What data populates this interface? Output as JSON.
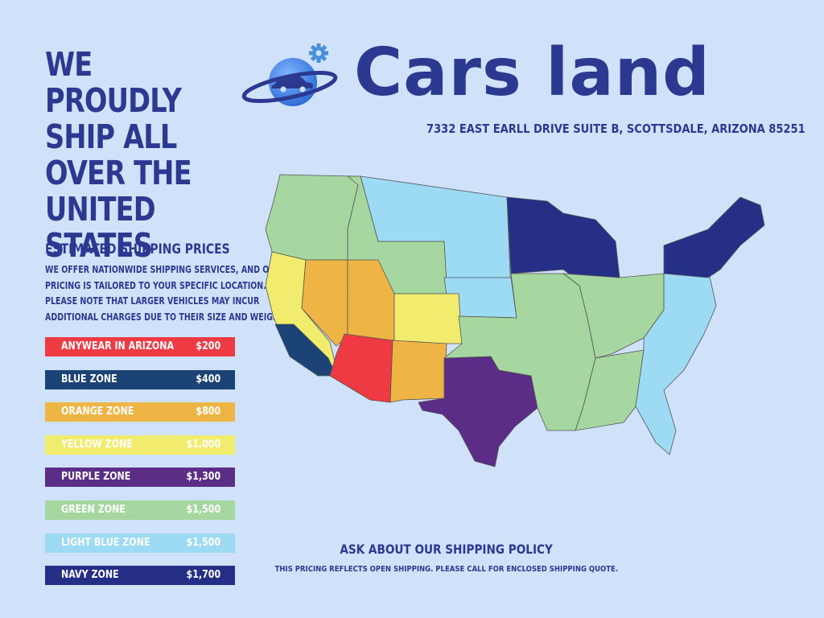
{
  "headline": {
    "lines": [
      "WE PROUDLY",
      "SHIP ALL",
      "OVER THE",
      "UNITED",
      "STATES"
    ]
  },
  "brand": {
    "name": "Cars land",
    "address": "7332 EAST EARLL DRIVE SUITE B, SCOTTSDALE, ARIZONA 85251",
    "logo_icon": "car-planet-logo-icon"
  },
  "estimated": {
    "title": "ESTIMATED SHIPPING PRICES",
    "lines": [
      "WE OFFER NATIONWIDE SHIPPING SERVICES, AND OUR",
      "PRICING IS TAILORED TO YOUR SPECIFIC LOCATION.",
      "PLEASE NOTE THAT LARGER VEHICLES MAY INCUR",
      "ADDITIONAL CHARGES DUE TO THEIR SIZE AND WEIGHT."
    ]
  },
  "zones": [
    {
      "name": "ANYWEAR IN ARIZONA",
      "price": "$200",
      "color": "#ee3a43",
      "text_color": "#ffffff"
    },
    {
      "name": "BLUE ZONE",
      "price": "$400",
      "color": "#1b4375",
      "text_color": "#ffffff"
    },
    {
      "name": "ORANGE ZONE",
      "price": "$800",
      "color": "#efb544",
      "text_color": "#ffffff"
    },
    {
      "name": "YELLOW  ZONE",
      "price": "$1,000",
      "color": "#f1ec6d",
      "text_color": "#ffffff"
    },
    {
      "name": "PURPLE ZONE",
      "price": "$1,300",
      "color": "#5c2d86",
      "text_color": "#ffffff"
    },
    {
      "name": "GREEN ZONE",
      "price": "$1,500",
      "color": "#a6d7a0",
      "text_color": "#ffffff"
    },
    {
      "name": "LIGHT BLUE  ZONE",
      "price": "$1,500",
      "color": "#9ddbf4",
      "text_color": "#ffffff"
    },
    {
      "name": "NAVY ZONE",
      "price": "$1,700",
      "color": "#262f86",
      "text_color": "#ffffff"
    }
  ],
  "map": {
    "icon": "usa-shipping-zone-map",
    "colors": {
      "green": "#a6d7a0",
      "lightblue": "#9ddbf4",
      "navy": "#262f86",
      "yellow": "#f1ec6d",
      "orange": "#efb544",
      "red": "#ee3a43",
      "blue": "#1b4375",
      "purple": "#5c2d86"
    }
  },
  "policy": {
    "title": "ASK ABOUT OUR SHIPPING POLICY",
    "note": "THIS PRICING REFLECTS OPEN SHIPPING. PLEASE CALL FOR ENCLOSED SHIPPING QUOTE."
  },
  "colors": {
    "background": "#cfe2fa",
    "text": "#2b3990"
  }
}
